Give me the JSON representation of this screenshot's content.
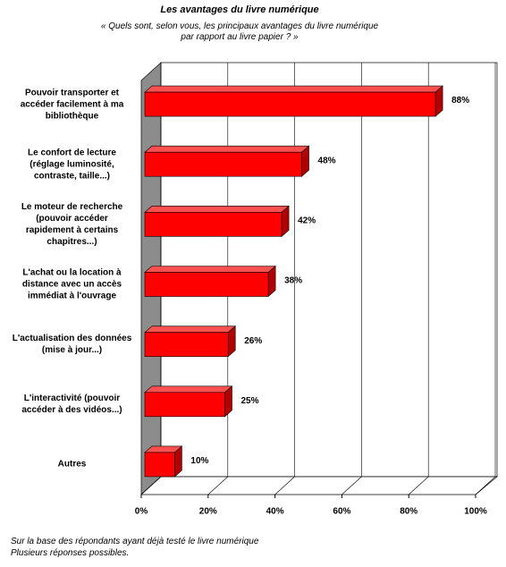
{
  "chart_data": {
    "type": "bar3d_horizontal",
    "title": "Les avantages du livre numérique",
    "subtitle": "« Quels sont, selon vous, les principaux avantages du livre numérique\npar rapport au livre papier ? »",
    "categories": [
      "Pouvoir transporter et\naccéder facilement à ma\nbibliothèque",
      "Le confort de lecture\n(réglage luminosité,\ncontraste, taille...)",
      "Le moteur de recherche\n(pouvoir accéder\nrapidement à certains\nchapitres...)",
      "L'achat ou la location à\ndistance avec un accès\nimmédiat à l'ouvrage",
      "L'actualisation des données\n(mise à jour...)",
      "L'interactivité (pouvoir\naccéder à des vidéos...)",
      "Autres"
    ],
    "values": [
      88,
      48,
      42,
      38,
      26,
      25,
      10
    ],
    "value_labels": [
      "88%",
      "48%",
      "42%",
      "38%",
      "26%",
      "25%",
      "10%"
    ],
    "color": "#ff0000",
    "xlim": [
      0,
      100
    ],
    "xticks": [
      {
        "value": 0,
        "label": "0%"
      },
      {
        "value": 20,
        "label": "20%"
      },
      {
        "value": 40,
        "label": "40%"
      },
      {
        "value": 60,
        "label": "60%"
      },
      {
        "value": 80,
        "label": "80%"
      },
      {
        "value": 100,
        "label": "100%"
      }
    ],
    "grid": true,
    "footnote": "Sur la base des répondants ayant déjà testé le livre numérique\nPlusieurs réponses possibles."
  }
}
